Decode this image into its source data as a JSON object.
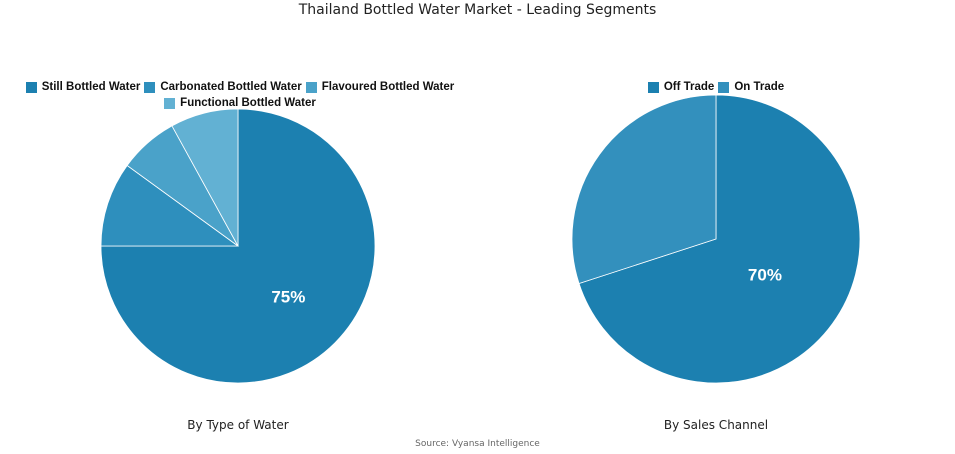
{
  "title": "Thailand Bottled Water Market - Leading Segments",
  "source": "Source: Vyansa Intelligence",
  "chart_data": [
    {
      "type": "pie",
      "subtitle": "By Type of Water",
      "legend_position": "top",
      "categories": [
        "Still Bottled Water",
        "Carbonated Bottled Water",
        "Flavoured Bottled Water",
        "Functional Bottled Water"
      ],
      "values": [
        75,
        10,
        7,
        8
      ],
      "colors": [
        "#1c80b0",
        "#2e8fbd",
        "#4aa2c9",
        "#62b1d3"
      ],
      "data_labels": [
        "75%",
        "",
        "",
        ""
      ]
    },
    {
      "type": "pie",
      "subtitle": "By Sales Channel",
      "legend_position": "top",
      "categories": [
        "Off Trade",
        "On Trade"
      ],
      "values": [
        70,
        30
      ],
      "colors": [
        "#1c80b0",
        "#3390bd"
      ],
      "data_labels": [
        "70%",
        ""
      ]
    }
  ]
}
